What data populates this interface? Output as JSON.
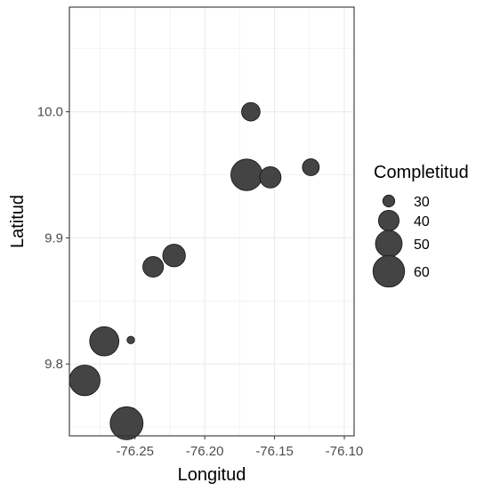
{
  "chart_data": {
    "type": "scatter",
    "xlabel": "Longitud",
    "ylabel": "Latitud",
    "xlim": [
      -76.297,
      -76.093
    ],
    "ylim": [
      9.743,
      10.083
    ],
    "x_ticks": [
      -76.25,
      -76.2,
      -76.15,
      -76.1
    ],
    "x_tick_labels": [
      "-76.25",
      "-76.20",
      "-76.15",
      "-76.10"
    ],
    "y_ticks": [
      9.8,
      9.9,
      10.0
    ],
    "y_tick_labels": [
      "9.8",
      "9.9",
      "10.0"
    ],
    "grid": true,
    "size_range": [
      26,
      65
    ],
    "points": [
      {
        "x": -76.167,
        "y": 10.0,
        "size": 37
      },
      {
        "x": -76.124,
        "y": 9.956,
        "size": 35
      },
      {
        "x": -76.17,
        "y": 9.95,
        "size": 60
      },
      {
        "x": -76.153,
        "y": 9.948,
        "size": 41
      },
      {
        "x": -76.222,
        "y": 9.886,
        "size": 43
      },
      {
        "x": -76.237,
        "y": 9.877,
        "size": 40
      },
      {
        "x": -76.253,
        "y": 9.819,
        "size": 27
      },
      {
        "x": -76.272,
        "y": 9.818,
        "size": 55
      },
      {
        "x": -76.286,
        "y": 9.787,
        "size": 58
      },
      {
        "x": -76.256,
        "y": 9.753,
        "size": 63
      }
    ],
    "legend": {
      "title": "Completitud",
      "position": "right",
      "items": [
        {
          "label": "30",
          "size": 30
        },
        {
          "label": "40",
          "size": 40
        },
        {
          "label": "50",
          "size": 50
        },
        {
          "label": "60",
          "size": 60
        }
      ]
    },
    "colors": {
      "point_fill": "#444444",
      "point_stroke": "#111111",
      "grid": "#ebebeb",
      "panel_border": "#333333"
    }
  }
}
